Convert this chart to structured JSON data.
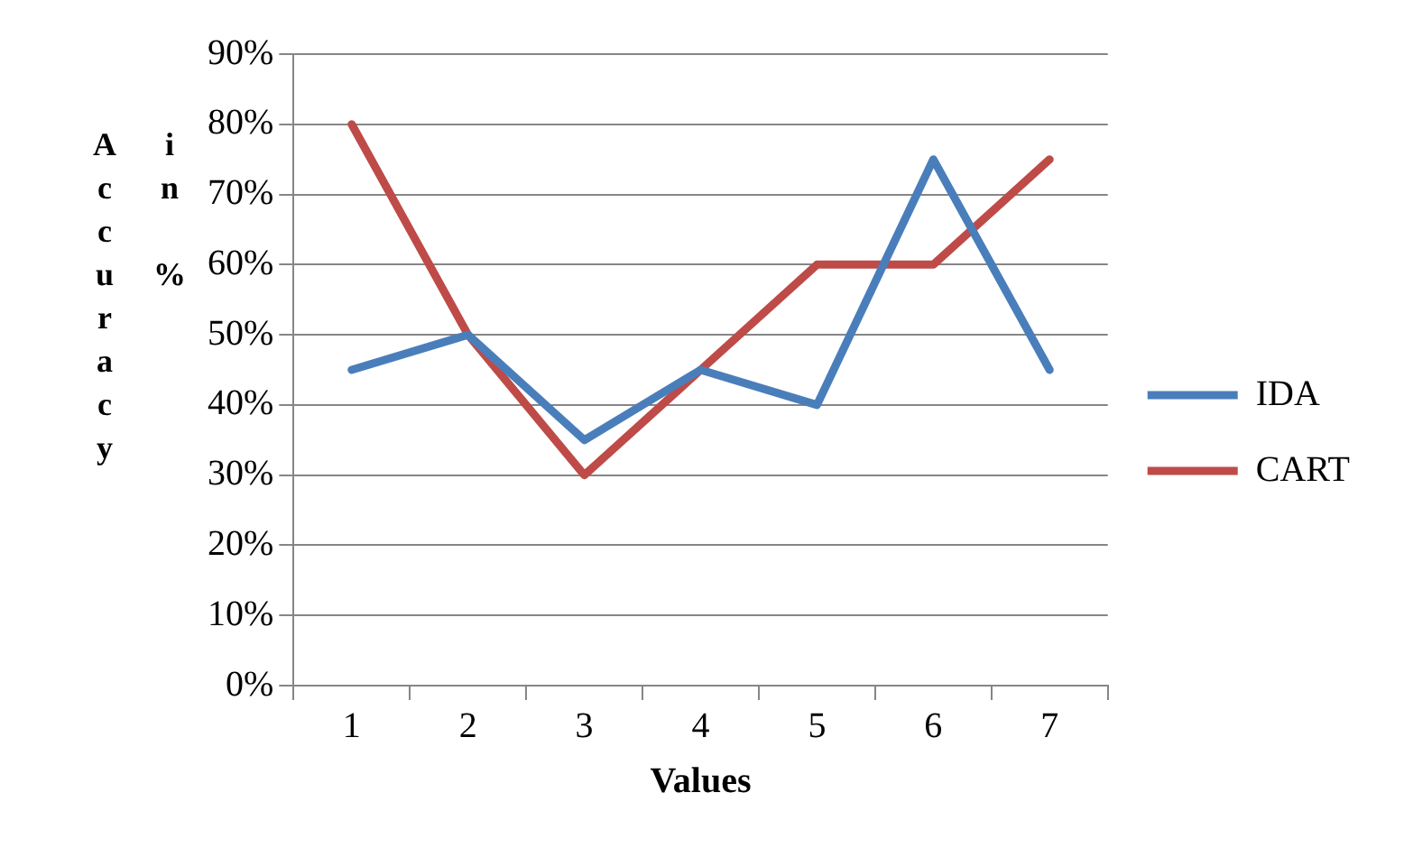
{
  "chart_data": {
    "type": "line",
    "xlabel": "Values",
    "ylabel": "Accuracy in %",
    "categories": [
      "1",
      "2",
      "3",
      "4",
      "5",
      "6",
      "7"
    ],
    "series": [
      {
        "name": "IDA",
        "color": "#4a7ebb",
        "values": [
          45,
          50,
          35,
          45,
          40,
          75,
          45
        ]
      },
      {
        "name": "CART",
        "color": "#be4b48",
        "values": [
          80,
          50,
          30,
          45,
          60,
          60,
          75
        ]
      }
    ],
    "ylim": [
      0,
      90
    ],
    "yticks": [
      {
        "value": 0,
        "label": "0%"
      },
      {
        "value": 10,
        "label": "10%"
      },
      {
        "value": 20,
        "label": "20%"
      },
      {
        "value": 30,
        "label": "30%"
      },
      {
        "value": 40,
        "label": "40%"
      },
      {
        "value": 50,
        "label": "50%"
      },
      {
        "value": 60,
        "label": "60%"
      },
      {
        "value": 70,
        "label": "70%"
      },
      {
        "value": 80,
        "label": "80%"
      },
      {
        "value": 90,
        "label": "90%"
      }
    ],
    "grid": "y",
    "legend": "right",
    "marker": "none",
    "line_style": "solid"
  }
}
